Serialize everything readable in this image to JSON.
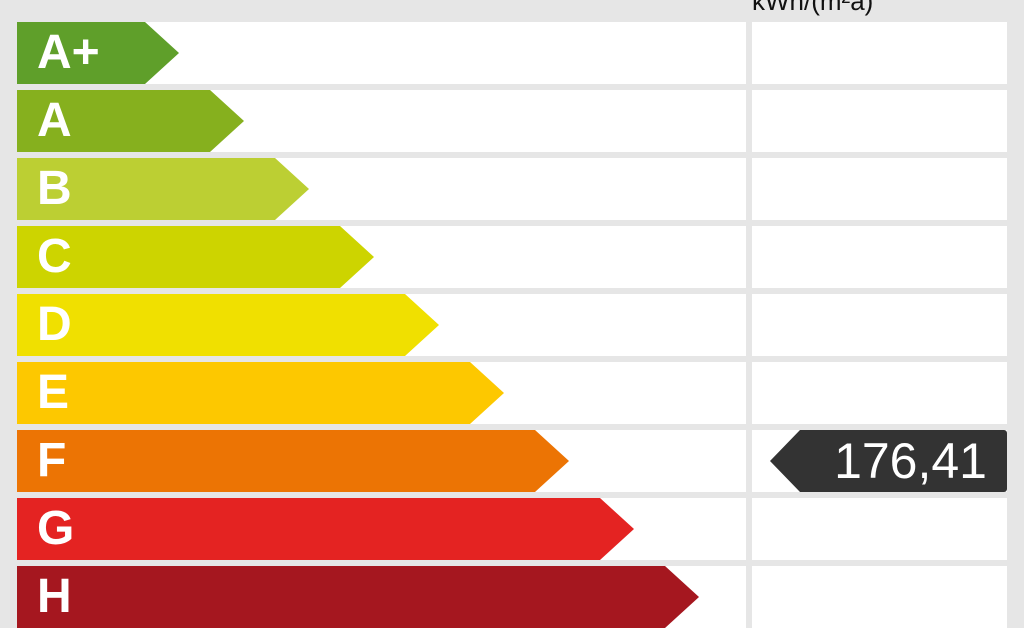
{
  "chart_data": {
    "type": "energy-rating",
    "unit_label": "kWh/(m²a)",
    "classes": [
      {
        "label": "A+",
        "color": "#5f9f2a"
      },
      {
        "label": "A",
        "color": "#86b01e"
      },
      {
        "label": "B",
        "color": "#bccf33"
      },
      {
        "label": "C",
        "color": "#cdd400"
      },
      {
        "label": "D",
        "color": "#f0e000"
      },
      {
        "label": "E",
        "color": "#fdc800"
      },
      {
        "label": "F",
        "color": "#ec7404"
      },
      {
        "label": "G",
        "color": "#e42322"
      },
      {
        "label": "H",
        "color": "#a5171f"
      }
    ],
    "value": "176,41",
    "value_class": "F",
    "marker_color": "#333333"
  }
}
